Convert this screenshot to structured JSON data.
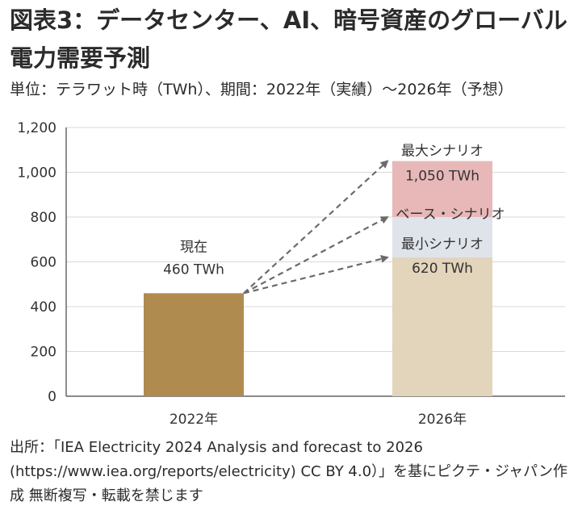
{
  "header": {
    "title": "図表3：データセンター、AI、暗号資産のグローバル電力需要予測",
    "subtitle": "単位：テラワット時（TWh）、期間：2022年（実績）〜2026年（予想）"
  },
  "chart_data": {
    "type": "bar",
    "title": "図表3：データセンター、AI、暗号資産のグローバル電力需要予測",
    "ylabel": "TWh",
    "ylim": [
      0,
      1200
    ],
    "yticks": [
      0,
      200,
      400,
      600,
      800,
      1000,
      1200
    ],
    "ytick_labels": [
      "0",
      "200",
      "400",
      "600",
      "800",
      "1,000",
      "1,200"
    ],
    "categories": [
      "2022年",
      "2026年"
    ],
    "actual": {
      "category": "2022年",
      "value": 460,
      "label_top": "現在",
      "label_bottom": "460 TWh",
      "color": "#b08b4f"
    },
    "scenarios": {
      "category": "2026年",
      "min": {
        "value": 620,
        "name": "最小シナリオ",
        "value_label": "620 TWh",
        "color": "#e3d4bc"
      },
      "base": {
        "value": 800,
        "name": "ベース・シナリオ",
        "color": "#dfe3ea"
      },
      "max": {
        "value": 1050,
        "name": "最大シナリオ",
        "value_label": "1,050 TWh",
        "color": "#e8b8b8"
      }
    },
    "grid": true,
    "arrows": [
      "2022→最大",
      "2022→ベース",
      "2022→最小"
    ]
  },
  "source": {
    "text": "出所：「IEA Electricity 2024 Analysis and forecast to 2026 (https://www.iea.org/reports/electricity) CC BY 4.0）」を基にピクテ・ジャパン作成 無断複写・転載を禁じます"
  }
}
